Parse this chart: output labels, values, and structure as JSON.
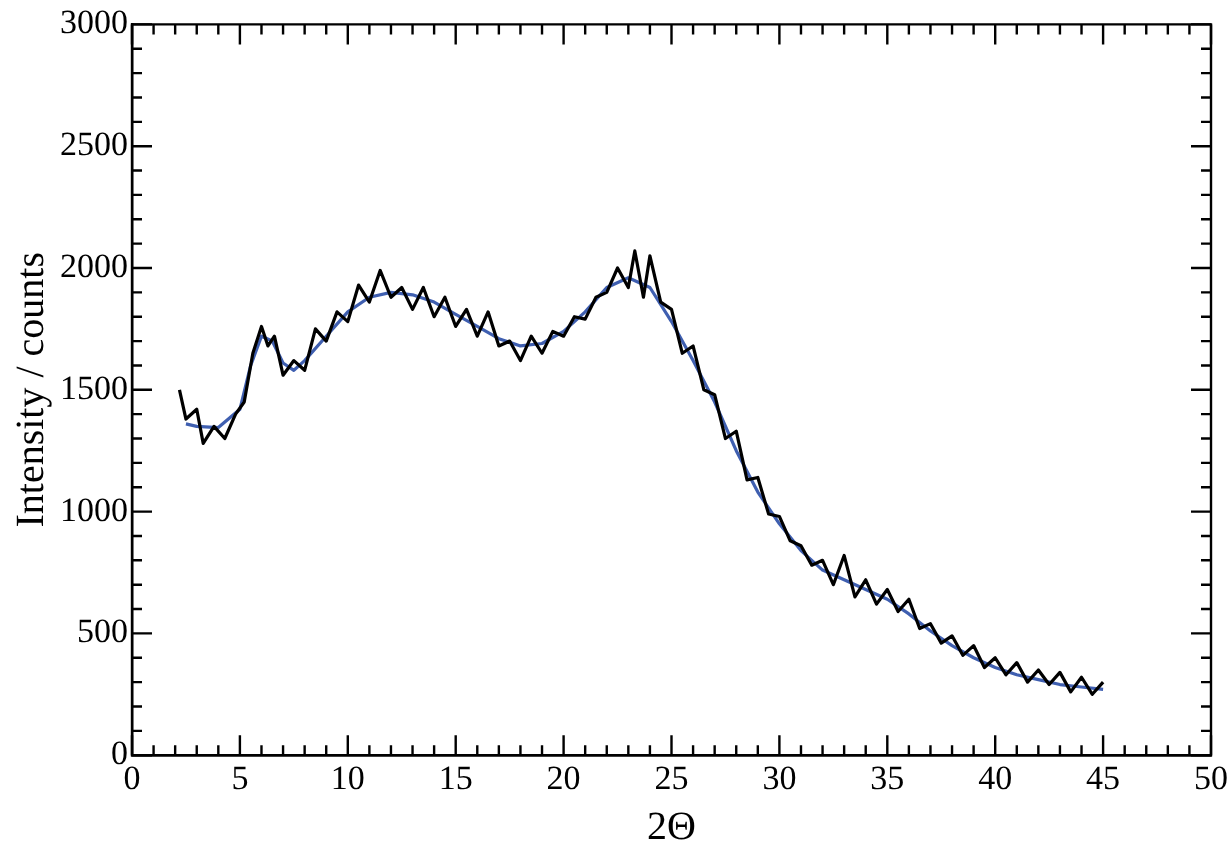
{
  "chart_data": {
    "type": "line",
    "xlabel": "2Θ",
    "ylabel": "Intensity / counts",
    "xlim": [
      0,
      50
    ],
    "ylim": [
      0,
      3000
    ],
    "xticks": [
      0,
      {
        "value": 1,
        "label": null
      },
      {
        "value": 2,
        "label": null
      },
      {
        "value": 3,
        "label": null
      },
      {
        "value": 4,
        "label": null
      },
      5,
      {
        "value": 6,
        "label": null
      },
      {
        "value": 7,
        "label": null
      },
      {
        "value": 8,
        "label": null
      },
      {
        "value": 9,
        "label": null
      },
      10,
      {
        "value": 11,
        "label": null
      },
      {
        "value": 12,
        "label": null
      },
      {
        "value": 13,
        "label": null
      },
      {
        "value": 14,
        "label": null
      },
      15,
      {
        "value": 16,
        "label": null
      },
      {
        "value": 17,
        "label": null
      },
      {
        "value": 18,
        "label": null
      },
      {
        "value": 19,
        "label": null
      },
      20,
      {
        "value": 21,
        "label": null
      },
      {
        "value": 22,
        "label": null
      },
      {
        "value": 23,
        "label": null
      },
      {
        "value": 24,
        "label": null
      },
      25,
      {
        "value": 26,
        "label": null
      },
      {
        "value": 27,
        "label": null
      },
      {
        "value": 28,
        "label": null
      },
      {
        "value": 29,
        "label": null
      },
      30,
      {
        "value": 31,
        "label": null
      },
      {
        "value": 32,
        "label": null
      },
      {
        "value": 33,
        "label": null
      },
      {
        "value": 34,
        "label": null
      },
      35,
      {
        "value": 36,
        "label": null
      },
      {
        "value": 37,
        "label": null
      },
      {
        "value": 38,
        "label": null
      },
      {
        "value": 39,
        "label": null
      },
      40,
      {
        "value": 41,
        "label": null
      },
      {
        "value": 42,
        "label": null
      },
      {
        "value": 43,
        "label": null
      },
      {
        "value": 44,
        "label": null
      },
      45,
      {
        "value": 46,
        "label": null
      },
      {
        "value": 47,
        "label": null
      },
      {
        "value": 48,
        "label": null
      },
      {
        "value": 49,
        "label": null
      },
      50
    ],
    "yticks": [
      0,
      {
        "value": 100,
        "label": null
      },
      {
        "value": 200,
        "label": null
      },
      {
        "value": 300,
        "label": null
      },
      {
        "value": 400,
        "label": null
      },
      500,
      {
        "value": 600,
        "label": null
      },
      {
        "value": 700,
        "label": null
      },
      {
        "value": 800,
        "label": null
      },
      {
        "value": 900,
        "label": null
      },
      1000,
      {
        "value": 1100,
        "label": null
      },
      {
        "value": 1200,
        "label": null
      },
      {
        "value": 1300,
        "label": null
      },
      {
        "value": 1400,
        "label": null
      },
      1500,
      {
        "value": 1600,
        "label": null
      },
      {
        "value": 1700,
        "label": null
      },
      {
        "value": 1800,
        "label": null
      },
      {
        "value": 1900,
        "label": null
      },
      2000,
      {
        "value": 2100,
        "label": null
      },
      {
        "value": 2200,
        "label": null
      },
      {
        "value": 2300,
        "label": null
      },
      {
        "value": 2400,
        "label": null
      },
      2500,
      {
        "value": 2600,
        "label": null
      },
      {
        "value": 2700,
        "label": null
      },
      {
        "value": 2800,
        "label": null
      },
      {
        "value": 2900,
        "label": null
      },
      3000
    ],
    "grid": false,
    "legend": false,
    "marker": "none",
    "line_style": "solid",
    "series": [
      {
        "color": "#000000",
        "x": [
          2.2,
          2.5,
          3,
          3.3,
          3.8,
          4.3,
          4.8,
          5.2,
          5.6,
          6,
          6.3,
          6.6,
          7,
          7.5,
          8,
          8.5,
          9,
          9.5,
          10,
          10.5,
          11,
          11.5,
          12,
          12.5,
          13,
          13.5,
          14,
          14.5,
          15,
          15.5,
          16,
          16.5,
          17,
          17.5,
          18,
          18.5,
          19,
          19.5,
          20,
          20.5,
          21,
          21.5,
          22,
          22.5,
          23,
          23.3,
          23.7,
          24,
          24.5,
          25,
          25.5,
          26,
          26.5,
          27,
          27.5,
          28,
          28.5,
          29,
          29.5,
          30,
          30.5,
          31,
          31.5,
          32,
          32.5,
          33,
          33.5,
          34,
          34.5,
          35,
          35.5,
          36,
          36.5,
          37,
          37.5,
          38,
          38.5,
          39,
          39.5,
          40,
          40.5,
          41,
          41.5,
          42,
          42.5,
          43,
          43.5,
          44,
          44.5,
          45
        ],
        "values": [
          1500,
          1380,
          1420,
          1280,
          1350,
          1300,
          1400,
          1450,
          1650,
          1760,
          1680,
          1720,
          1560,
          1620,
          1580,
          1750,
          1700,
          1820,
          1780,
          1930,
          1860,
          1990,
          1880,
          1920,
          1830,
          1920,
          1800,
          1880,
          1760,
          1830,
          1720,
          1820,
          1680,
          1700,
          1620,
          1720,
          1650,
          1740,
          1720,
          1800,
          1790,
          1880,
          1900,
          2000,
          1920,
          2070,
          1880,
          2050,
          1860,
          1830,
          1650,
          1680,
          1500,
          1480,
          1300,
          1330,
          1130,
          1140,
          990,
          980,
          880,
          860,
          780,
          800,
          700,
          820,
          650,
          720,
          620,
          680,
          590,
          640,
          520,
          540,
          460,
          490,
          410,
          450,
          360,
          400,
          330,
          380,
          300,
          350,
          290,
          340,
          260,
          320,
          250,
          300
        ]
      },
      {
        "color": "#3f5fb0",
        "x": [
          2.5,
          3,
          4,
          5,
          5.5,
          6,
          6.5,
          7,
          7.5,
          8,
          9,
          10,
          11,
          12,
          13,
          14,
          15,
          16,
          17,
          18,
          19,
          20,
          21,
          22,
          23,
          24,
          25,
          26,
          27,
          28,
          29,
          30,
          31,
          32,
          33,
          34,
          35,
          36,
          37,
          38,
          39,
          40,
          41,
          42,
          43,
          44,
          45
        ],
        "values": [
          1360,
          1350,
          1345,
          1420,
          1600,
          1720,
          1700,
          1610,
          1580,
          1620,
          1720,
          1820,
          1880,
          1900,
          1890,
          1860,
          1810,
          1760,
          1710,
          1680,
          1690,
          1740,
          1820,
          1920,
          1960,
          1920,
          1780,
          1620,
          1450,
          1250,
          1080,
          950,
          840,
          760,
          720,
          680,
          640,
          580,
          510,
          450,
          400,
          360,
          330,
          310,
          290,
          280,
          270
        ]
      }
    ]
  }
}
